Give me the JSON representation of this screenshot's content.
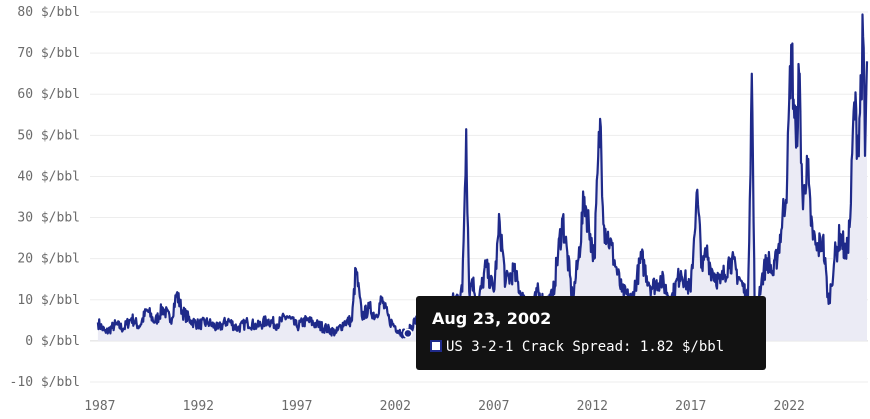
{
  "chart_data": {
    "type": "area",
    "series": [
      {
        "name": "US 3-2-1 Crack Spread",
        "unit": "$/bbl",
        "color": "#1f2a8a",
        "fill": "#ebebf5",
        "x": [
          1986.9,
          1987.3,
          1987.8,
          1988.2,
          1988.6,
          1989.0,
          1989.4,
          1989.8,
          1990.2,
          1990.6,
          1990.9,
          1991.2,
          1991.6,
          1992.0,
          1992.5,
          1993.0,
          1993.5,
          1994.0,
          1994.5,
          1995.0,
          1995.5,
          1996.0,
          1996.5,
          1997.0,
          1997.5,
          1998.0,
          1998.5,
          1999.0,
          1999.4,
          1999.8,
          2000.0,
          2000.3,
          2000.7,
          2001.0,
          2001.3,
          2001.7,
          2002.0,
          2002.3,
          2002.64,
          2003.0,
          2003.5,
          2004.0,
          2004.5,
          2005.0,
          2005.4,
          2005.6,
          2005.75,
          2005.9,
          2006.2,
          2006.6,
          2007.0,
          2007.3,
          2007.6,
          2008.0,
          2008.5,
          2008.9,
          2009.2,
          2009.6,
          2010.0,
          2010.5,
          2011.0,
          2011.3,
          2011.6,
          2011.9,
          2012.1,
          2012.4,
          2012.6,
          2012.9,
          2013.2,
          2013.5,
          2014.0,
          2014.5,
          2015.0,
          2015.5,
          2016.0,
          2016.5,
          2017.0,
          2017.3,
          2017.6,
          2017.8,
          2018.0,
          2018.5,
          2019.0,
          2019.5,
          2019.9,
          2020.1,
          2020.25,
          2020.4,
          2020.6,
          2020.9,
          2021.2,
          2021.6,
          2021.9,
          2022.1,
          2022.35,
          2022.5,
          2022.7,
          2022.9,
          2023.1,
          2023.4,
          2023.7,
          2024.0,
          2024.3,
          2024.6,
          2024.9,
          2025.1,
          2025.3,
          2025.5,
          2025.75,
          2025.85,
          2025.95
        ],
        "y": [
          4.5,
          2.0,
          4.0,
          3.0,
          5.5,
          3.5,
          7.5,
          4.5,
          8.0,
          5.0,
          11.5,
          7.0,
          5.0,
          4.0,
          4.5,
          3.0,
          5.0,
          3.0,
          4.5,
          3.5,
          5.0,
          4.0,
          6.0,
          3.5,
          5.0,
          4.0,
          3.0,
          2.0,
          4.5,
          5.0,
          17.5,
          6.0,
          8.0,
          6.0,
          10.0,
          5.0,
          3.5,
          2.0,
          1.82,
          5.0,
          4.0,
          6.0,
          8.0,
          10.0,
          12.0,
          51.5,
          12.0,
          15.0,
          9.0,
          18.0,
          12.0,
          29.0,
          14.0,
          17.0,
          10.0,
          6.0,
          12.0,
          9.0,
          11.0,
          30.0,
          10.0,
          20.0,
          35.0,
          26.0,
          20.0,
          54.0,
          28.0,
          24.0,
          18.0,
          12.0,
          10.0,
          20.0,
          13.0,
          15.0,
          10.0,
          17.0,
          12.0,
          36.0,
          17.0,
          22.0,
          18.0,
          14.0,
          20.0,
          15.0,
          10.0,
          65.0,
          6.0,
          10.0,
          15.0,
          20.0,
          16.0,
          27.0,
          40.0,
          72.0,
          47.0,
          65.0,
          32.0,
          45.0,
          28.0,
          22.0,
          25.0,
          9.0,
          20.0,
          26.0,
          20.0,
          30.0,
          58.0,
          48.0,
          74.0,
          45.0,
          68.0
        ]
      }
    ],
    "y_ticks": [
      {
        "value": 80,
        "label": "80 $/bbl"
      },
      {
        "value": 70,
        "label": "70 $/bbl"
      },
      {
        "value": 60,
        "label": "60 $/bbl"
      },
      {
        "value": 50,
        "label": "50 $/bbl"
      },
      {
        "value": 40,
        "label": "40 $/bbl"
      },
      {
        "value": 30,
        "label": "30 $/bbl"
      },
      {
        "value": 20,
        "label": "20 $/bbl"
      },
      {
        "value": 10,
        "label": "10 $/bbl"
      },
      {
        "value": 0,
        "label": "0 $/bbl"
      },
      {
        "value": -10,
        "label": "-10 $/bbl"
      }
    ],
    "x_ticks": [
      {
        "value": 1987,
        "label": "1987"
      },
      {
        "value": 1992,
        "label": "1992"
      },
      {
        "value": 1997,
        "label": "1997"
      },
      {
        "value": 2002,
        "label": "2002"
      },
      {
        "value": 2007,
        "label": "2007"
      },
      {
        "value": 2012,
        "label": "2012"
      },
      {
        "value": 2017,
        "label": "2017"
      },
      {
        "value": 2022,
        "label": "2022"
      }
    ],
    "xlim": [
      1986.5,
      2026.0
    ],
    "ylim": [
      -10,
      80
    ],
    "grid": "horizontal",
    "tooltip": {
      "date": "Aug 23, 2002",
      "text": "US 3-2-1 Crack Spread: 1.82 $/bbl",
      "x": 2002.64,
      "y": 1.82
    }
  }
}
